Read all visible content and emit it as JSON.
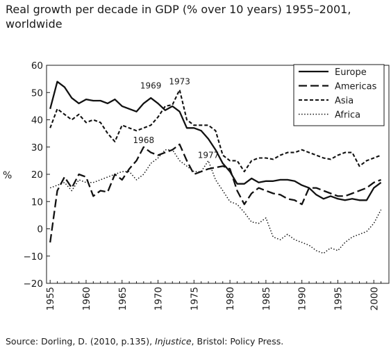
{
  "title": "Real growth per decade in GDP (% over 10 years) 1955–2001, worldwide",
  "source": {
    "prefix": "Source: Dorling, D. (2010, p.135), ",
    "italic": "Injustice",
    "suffix": ", Bristol: Policy Press."
  },
  "chart_data": {
    "type": "line",
    "title": "Real growth per decade in GDP (% over 10 years) 1955–2001, worldwide",
    "xlabel": "",
    "ylabel": "%",
    "xlim": [
      1955,
      2001
    ],
    "ylim": [
      -20,
      60
    ],
    "yticks": [
      -20,
      -10,
      0,
      10,
      20,
      30,
      40,
      50,
      60
    ],
    "xticks": [
      1955,
      1960,
      1965,
      1970,
      1975,
      1980,
      1985,
      1990,
      1995,
      2000
    ],
    "grid": false,
    "legend_position": "top-right",
    "x": [
      1955,
      1956,
      1957,
      1958,
      1959,
      1960,
      1961,
      1962,
      1963,
      1964,
      1965,
      1966,
      1967,
      1968,
      1969,
      1970,
      1971,
      1972,
      1973,
      1974,
      1975,
      1976,
      1977,
      1978,
      1979,
      1980,
      1981,
      1982,
      1983,
      1984,
      1985,
      1986,
      1987,
      1988,
      1989,
      1990,
      1991,
      1992,
      1993,
      1994,
      1995,
      1996,
      1997,
      1998,
      1999,
      2000,
      2001
    ],
    "series": [
      {
        "name": "Europe",
        "style": "solid",
        "values": [
          44,
          54,
          52,
          48,
          46,
          47.5,
          47,
          47,
          46,
          47.5,
          45,
          44,
          43,
          46,
          48,
          46,
          43.5,
          45,
          43,
          37,
          37,
          36,
          33,
          29,
          24,
          21,
          16.5,
          16.5,
          18.5,
          17,
          17.5,
          17.5,
          18,
          18,
          17.5,
          16,
          15,
          12.5,
          11,
          12,
          11,
          10.5,
          11,
          10.5,
          10.5,
          15,
          17
        ]
      },
      {
        "name": "Americas",
        "style": "dashed",
        "values": [
          -5,
          14,
          19,
          15,
          20,
          19,
          12,
          14,
          13.5,
          20,
          18,
          22,
          25,
          30,
          28,
          27,
          28,
          29,
          31,
          25,
          20,
          21,
          22,
          22.5,
          23,
          22,
          14,
          9,
          13,
          15,
          14,
          13,
          12.5,
          11,
          10.5,
          9,
          15,
          15,
          14,
          13,
          12,
          12,
          13,
          14,
          15,
          17,
          18
        ]
      },
      {
        "name": "Asia",
        "style": "short-dashed",
        "values": [
          37,
          44,
          42,
          40,
          42,
          39,
          40,
          39,
          35,
          32,
          38,
          37,
          36,
          37,
          38,
          41,
          45,
          45.5,
          51,
          40,
          38,
          38,
          38,
          36,
          27,
          25,
          25,
          21,
          25,
          26,
          26,
          25.5,
          27,
          28,
          28,
          29,
          28,
          27,
          26,
          25.5,
          27,
          28,
          28,
          23,
          25,
          26,
          27
        ]
      },
      {
        "name": "Africa",
        "style": "dotted",
        "values": [
          15,
          16,
          17,
          14,
          18,
          17,
          17,
          18,
          19,
          20,
          21,
          21,
          18,
          20,
          24,
          26,
          29,
          29,
          25,
          23,
          21,
          21,
          25,
          18,
          14,
          10,
          9,
          6,
          2.5,
          2,
          4,
          -3,
          -4,
          -2,
          -4,
          -5,
          -6,
          -8,
          -9,
          -7,
          -8,
          -5,
          -3,
          -2,
          -1,
          2,
          7
        ]
      }
    ],
    "annotations": [
      {
        "text": "1969",
        "x": 1969
      },
      {
        "text": "1973",
        "x": 1973
      },
      {
        "text": "1968",
        "x": 1968
      },
      {
        "text": "1977",
        "x": 1977
      }
    ]
  }
}
